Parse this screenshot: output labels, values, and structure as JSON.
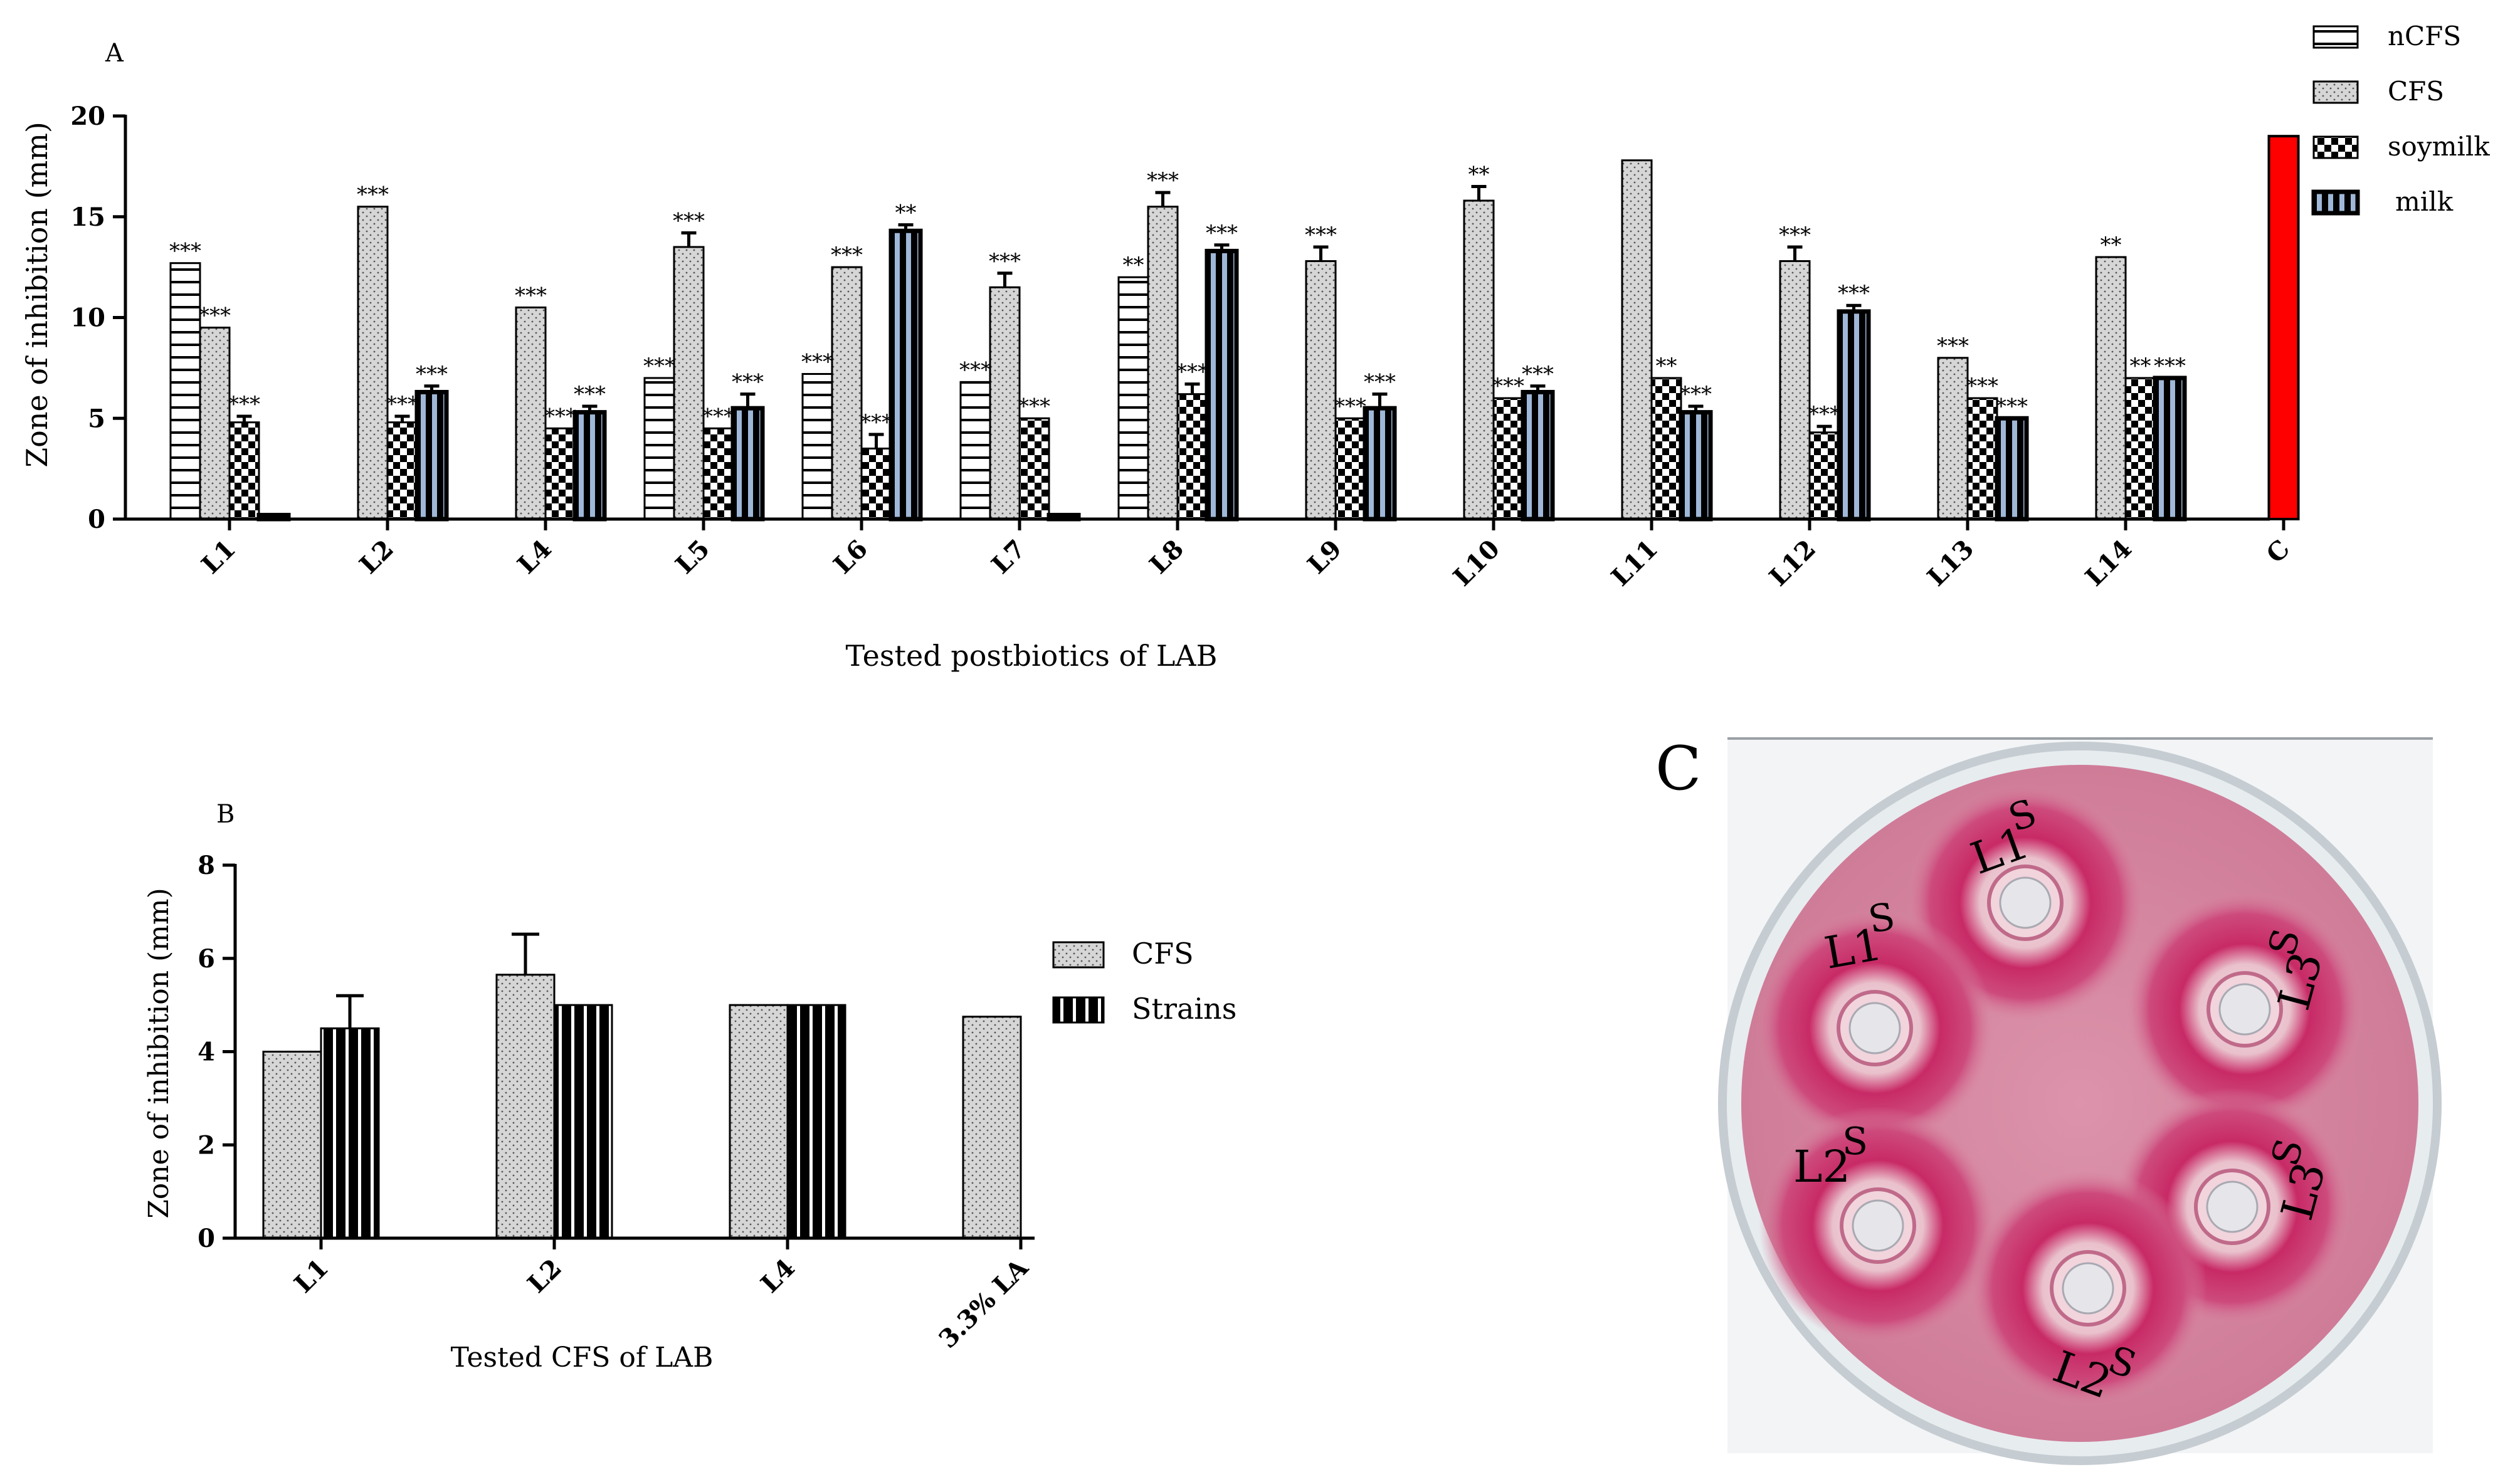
{
  "panel_labels": {
    "a": "A",
    "b": "B",
    "c": "C"
  },
  "chart_data": [
    {
      "id": "A",
      "type": "bar",
      "title": "",
      "xlabel": "Tested postbiotics of LAB",
      "ylabel": "Zone of inhibition (mm)",
      "ylim": [
        0,
        20
      ],
      "yticks": [
        "0",
        "5",
        "10",
        "15",
        "20"
      ],
      "categories": [
        "L1",
        "L2",
        "L4",
        "L5",
        "L6",
        "L7",
        "L8",
        "L9",
        "L10",
        "L11",
        "L12",
        "L13",
        "L14",
        "C"
      ],
      "legend_position": "top-right",
      "series": [
        {
          "name": "nCFS",
          "pattern": "hlines",
          "values": [
            12.7,
            0,
            0,
            7.0,
            7.2,
            6.8,
            12.0,
            0,
            0,
            0,
            0,
            0,
            0,
            null
          ],
          "errors": [
            0,
            0,
            0,
            0,
            0,
            0,
            0,
            0,
            0,
            0,
            0,
            0,
            0,
            null
          ],
          "stars": [
            "***",
            "",
            "",
            "***",
            "***",
            "***",
            "**",
            "",
            "",
            "",
            "",
            "",
            "",
            ""
          ]
        },
        {
          "name": "CFS",
          "pattern": "dots",
          "values": [
            9.5,
            15.5,
            10.5,
            13.5,
            12.5,
            11.5,
            15.5,
            12.8,
            15.8,
            17.8,
            12.8,
            8.0,
            13.0,
            null
          ],
          "errors": [
            0,
            0,
            0,
            0.7,
            0,
            0.7,
            0.7,
            0.7,
            0.7,
            0,
            0.7,
            0,
            0,
            null
          ],
          "stars": [
            "***",
            "***",
            "***",
            "***",
            "***",
            "***",
            "***",
            "***",
            "**",
            "",
            "***",
            "***",
            "**",
            ""
          ]
        },
        {
          "name": "soymilk",
          "pattern": "checker",
          "values": [
            4.8,
            4.8,
            4.5,
            4.5,
            3.5,
            5.0,
            6.2,
            5.0,
            6.0,
            7.0,
            4.3,
            6.0,
            7.0,
            null
          ],
          "errors": [
            0.3,
            0.3,
            0,
            0,
            0.7,
            0,
            0.5,
            0,
            0,
            0,
            0.3,
            0,
            0,
            null
          ],
          "stars": [
            "***",
            "***",
            "***",
            "***",
            "***",
            "***",
            "***",
            "***",
            "***",
            "**",
            "***",
            "***",
            "**",
            ""
          ]
        },
        {
          "name": "milk",
          "pattern": "vstripes",
          "values": [
            0.2,
            6.3,
            5.3,
            5.5,
            14.3,
            0.2,
            13.3,
            5.5,
            6.3,
            5.3,
            10.3,
            5.0,
            7.0,
            null
          ],
          "errors": [
            0,
            0.3,
            0.3,
            0.7,
            0.3,
            0,
            0.3,
            0.7,
            0.3,
            0.3,
            0.3,
            0,
            0,
            null
          ],
          "stars": [
            "",
            "***",
            "***",
            "***",
            "**",
            "",
            "***",
            "***",
            "***",
            "***",
            "***",
            "***",
            "***",
            ""
          ]
        }
      ],
      "control": {
        "category": "C",
        "value": 19.0,
        "color": "#ff0000"
      }
    },
    {
      "id": "B",
      "type": "bar",
      "title": "",
      "xlabel": "Tested CFS of LAB",
      "ylabel": "Zone of inhibition (mm)",
      "ylim": [
        0,
        8
      ],
      "yticks": [
        "0",
        "2",
        "4",
        "6",
        "8"
      ],
      "categories": [
        "L1",
        "L2",
        "L4",
        "3.3% LA"
      ],
      "legend_position": "right",
      "series": [
        {
          "name": "CFS",
          "pattern": "dots",
          "values": [
            4.0,
            5.65,
            5.0,
            4.75
          ],
          "errors": [
            0,
            0.87,
            0,
            0
          ]
        },
        {
          "name": "Strains",
          "pattern": "vstripes-bw",
          "values": [
            4.5,
            5.0,
            5.0,
            null
          ],
          "errors": [
            0.7,
            0,
            0,
            0
          ]
        }
      ]
    }
  ],
  "photo": {
    "description_icon": "petri-dish-photo-icon",
    "well_labels": [
      {
        "text": "L1",
        "sup": "S"
      },
      {
        "text": "L1",
        "sup": "S"
      },
      {
        "text": "L3",
        "sup": "S"
      },
      {
        "text": "L2",
        "sup": "S"
      },
      {
        "text": "L3",
        "sup": "S"
      },
      {
        "text": "L2",
        "sup": "S"
      }
    ],
    "agar_color": "#d88aa3",
    "halo_color": "#c8346e"
  }
}
